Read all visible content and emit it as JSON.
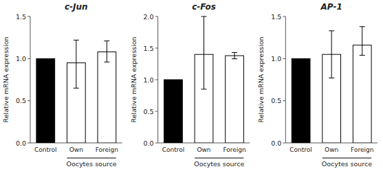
{
  "chart_data": [
    {
      "type": "bar",
      "title": "c-Jun",
      "categories": [
        "Control",
        "Own",
        "Foreign"
      ],
      "values": [
        1.0,
        0.95,
        1.08
      ],
      "errors_upper": [
        0.0,
        0.27,
        0.13
      ],
      "errors_lower": [
        0.0,
        0.3,
        0.12
      ],
      "colors": [
        "black",
        "white",
        "white"
      ],
      "ylim": [
        0,
        1.5
      ],
      "yticks": [
        {
          "value": 0,
          "label": "0.0"
        },
        0.5,
        {
          "value": 1.0,
          "label": "1.0"
        },
        1.5
      ],
      "ylabel": "Relative mRNA expression",
      "xlabel": "Oocytes source"
    },
    {
      "type": "bar",
      "title": "c-Fos",
      "categories": [
        "Control",
        "Own",
        "Foreign"
      ],
      "values": [
        1.0,
        1.4,
        1.38
      ],
      "errors_upper": [
        0.0,
        0.6,
        0.05
      ],
      "errors_lower": [
        0.0,
        0.55,
        0.05
      ],
      "colors": [
        "black",
        "white",
        "white"
      ],
      "ylim": [
        0,
        2.0
      ],
      "yticks": [
        {
          "value": 0,
          "label": "0.0"
        },
        0.5,
        {
          "value": 1.0,
          "label": "1.0"
        },
        1.5,
        {
          "value": 2.0,
          "label": "2.0"
        }
      ],
      "ylabel": "Relative mRNA expression",
      "xlabel": "Oocytes source"
    },
    {
      "type": "bar",
      "title": "AP-1",
      "categories": [
        "Control",
        "Own",
        "Foreign"
      ],
      "values": [
        1.0,
        1.05,
        1.16
      ],
      "errors_upper": [
        0.0,
        0.28,
        0.22
      ],
      "errors_lower": [
        0.0,
        0.28,
        0.12
      ],
      "colors": [
        "black",
        "white",
        "white"
      ],
      "ylim": [
        0,
        1.5
      ],
      "yticks": [
        {
          "value": 0,
          "label": "0.0"
        },
        0.5,
        {
          "value": 1.0,
          "label": "1.0"
        },
        1.5
      ],
      "ylabel": "Relative mRNA expression",
      "xlabel": "Oocytes source"
    }
  ]
}
